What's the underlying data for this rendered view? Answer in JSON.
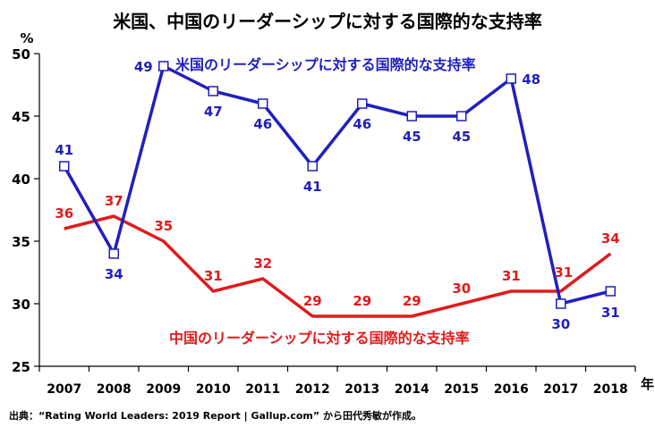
{
  "chart_data": {
    "type": "line",
    "title": "米国、中国のリーダーシップに対する国際的な支持率",
    "ylabel": "%",
    "xlabel": "年",
    "ylim": [
      25,
      50
    ],
    "yticks": [
      25,
      30,
      35,
      40,
      45,
      50
    ],
    "categories": [
      "2007",
      "2008",
      "2009",
      "2010",
      "2011",
      "2012",
      "2013",
      "2014",
      "2015",
      "2016",
      "2017",
      "2018"
    ],
    "series": [
      {
        "name": "米国のリーダーシップに対する国際的な支持率",
        "color": "#1f1fbf",
        "marker": "square",
        "values": [
          41,
          34,
          49,
          47,
          46,
          41,
          46,
          45,
          45,
          48,
          30,
          31
        ]
      },
      {
        "name": "中国のリーダーシップに対する国際的な支持率",
        "color": "#e01b1b",
        "marker": "none",
        "values": [
          36,
          37,
          35,
          31,
          32,
          29,
          29,
          29,
          30,
          31,
          31,
          34
        ]
      }
    ]
  },
  "source_note": "出典：“Rating World Leaders: 2019 Report  |  Gallup.com” から田代秀敏が作成。"
}
